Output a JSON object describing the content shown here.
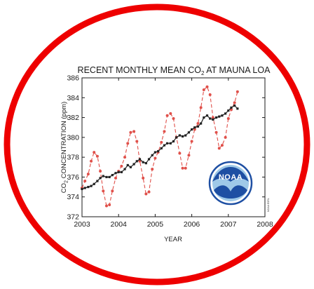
{
  "colors": {
    "ring": "#ee0000",
    "monthly_series": "#e0504a",
    "trend_series": "#222222",
    "logo_blue": "#1e4fa3",
    "logo_light": "#9fc9e8"
  },
  "logo": {
    "text": "NOAA",
    "icon": "noaa-logo-icon"
  },
  "side_note": "NOAA ESRL",
  "chart_data": {
    "type": "line",
    "title_main": "RECENT MONTHLY MEAN CO",
    "title_sub": "2",
    "title_end": " AT MAUNA LOA",
    "xlabel": "YEAR",
    "ylabel_main": "CO",
    "ylabel_sub": "2",
    "ylabel_end": " CONCENTRATION (ppm)",
    "xlim": [
      2003,
      2008
    ],
    "ylim": [
      372,
      386
    ],
    "xticks": [
      2003,
      2004,
      2005,
      2006,
      2007,
      2008
    ],
    "yticks": [
      372,
      374,
      376,
      378,
      380,
      382,
      384,
      386
    ],
    "grid": false,
    "x": [
      2003.0,
      2003.08,
      2003.17,
      2003.25,
      2003.33,
      2003.42,
      2003.5,
      2003.58,
      2003.67,
      2003.75,
      2003.83,
      2003.92,
      2004.0,
      2004.08,
      2004.17,
      2004.25,
      2004.33,
      2004.42,
      2004.5,
      2004.58,
      2004.67,
      2004.75,
      2004.83,
      2004.92,
      2005.0,
      2005.08,
      2005.17,
      2005.25,
      2005.33,
      2005.42,
      2005.5,
      2005.58,
      2005.67,
      2005.75,
      2005.83,
      2005.92,
      2006.0,
      2006.08,
      2006.17,
      2006.25,
      2006.33,
      2006.42,
      2006.5,
      2006.58,
      2006.67,
      2006.75,
      2006.83,
      2006.92,
      2007.0,
      2007.08,
      2007.17,
      2007.25
    ],
    "series": [
      {
        "key": "monthly",
        "style": "dashed-with-markers",
        "values": [
          374.9,
          375.6,
          376.3,
          377.6,
          378.5,
          378.1,
          376.6,
          374.6,
          373.1,
          373.2,
          374.6,
          375.9,
          376.6,
          377.1,
          378.0,
          379.4,
          380.5,
          380.6,
          379.6,
          377.6,
          375.9,
          374.3,
          374.5,
          376.8,
          377.9,
          378.5,
          379.5,
          380.6,
          382.2,
          382.4,
          381.9,
          380.0,
          378.4,
          376.9,
          376.9,
          378.2,
          379.6,
          380.8,
          381.4,
          383.0,
          384.8,
          385.1,
          384.3,
          382.0,
          380.5,
          378.9,
          379.2,
          380.0,
          381.9,
          382.8,
          383.5,
          384.6
        ]
      },
      {
        "key": "trend",
        "style": "solid-with-markers",
        "values": [
          374.8,
          374.9,
          375.0,
          375.1,
          375.3,
          375.6,
          375.9,
          376.1,
          376.0,
          376.0,
          376.2,
          376.4,
          376.5,
          376.5,
          376.8,
          377.2,
          377.0,
          377.3,
          377.6,
          377.8,
          377.5,
          377.4,
          377.8,
          378.2,
          378.5,
          378.6,
          378.9,
          379.2,
          379.4,
          379.4,
          379.6,
          380.0,
          380.2,
          380.1,
          380.2,
          380.5,
          380.8,
          381.0,
          381.1,
          381.4,
          382.0,
          382.2,
          381.9,
          381.8,
          382.0,
          382.1,
          382.2,
          382.4,
          382.7,
          383.0,
          383.2,
          382.9
        ]
      }
    ]
  }
}
